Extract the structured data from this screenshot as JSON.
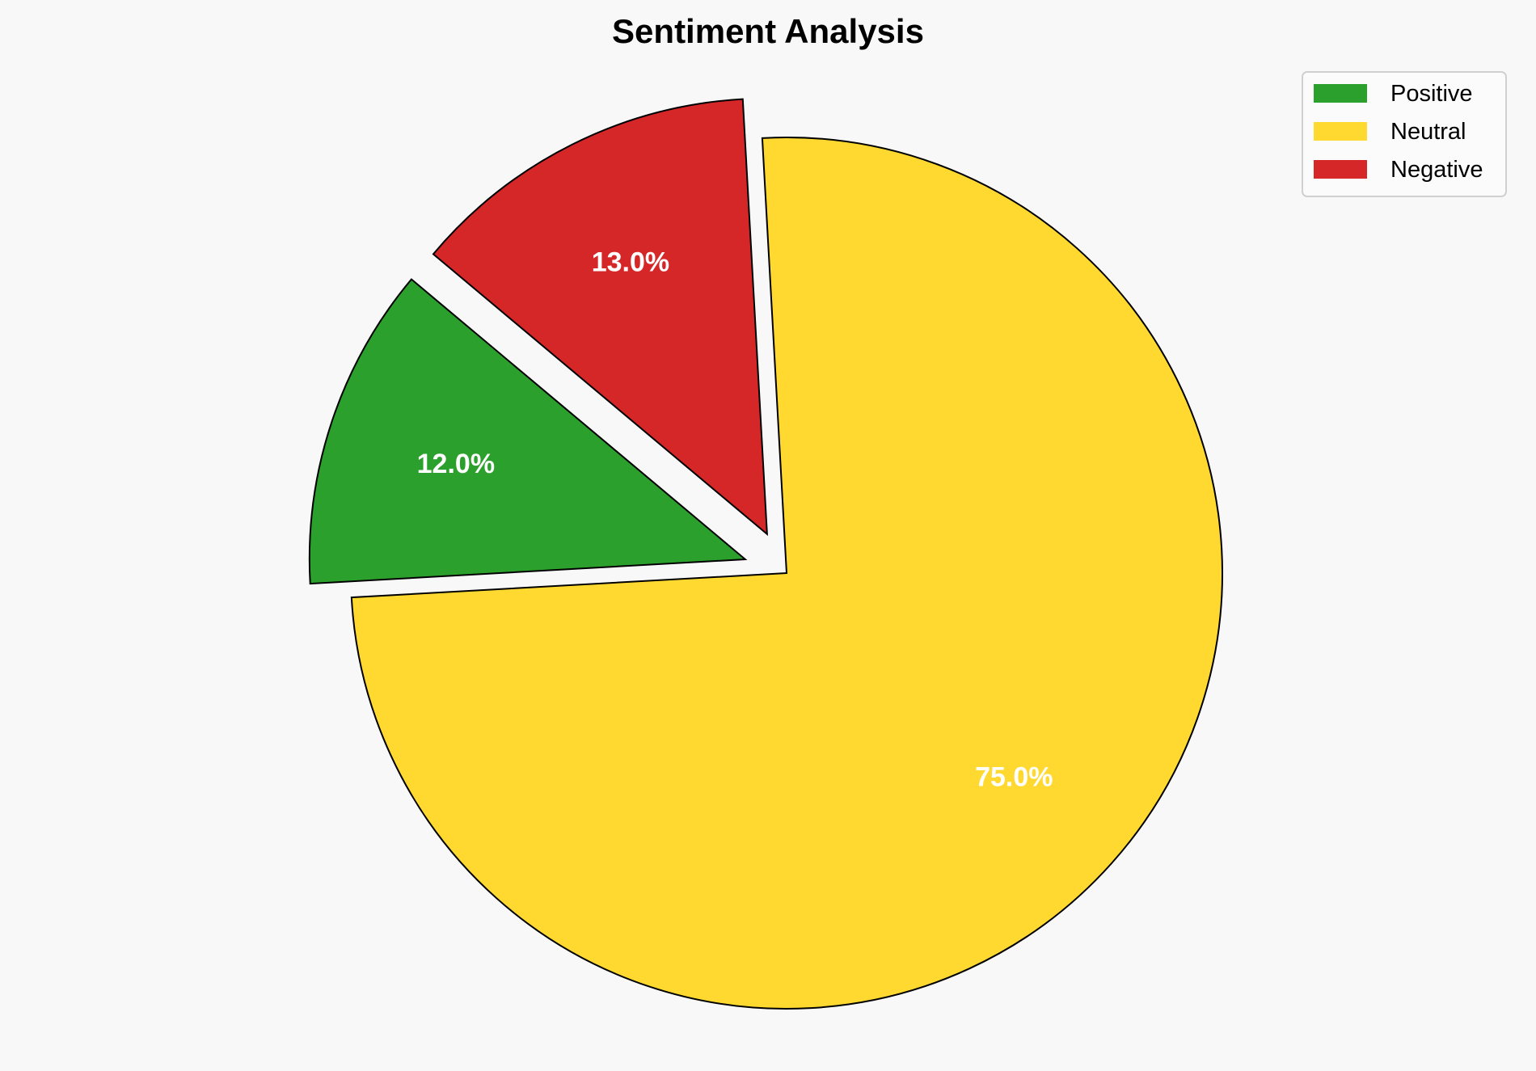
{
  "chart_data": {
    "type": "pie",
    "title": "Sentiment Analysis",
    "categories": [
      "Positive",
      "Neutral",
      "Negative"
    ],
    "values": [
      12.0,
      75.0,
      13.0
    ],
    "labels": [
      "12.0%",
      "75.0%",
      "13.0%"
    ],
    "colors": [
      "#2ca02c",
      "#ffd92f",
      "#d62728"
    ],
    "explode": [
      0.1,
      0,
      0.1
    ],
    "start_angle": 140,
    "edge_color": "#000000",
    "label_color": "#ffffff",
    "background": "#f8f8f8",
    "legend": {
      "position": "top-right",
      "entries": [
        "Positive",
        "Neutral",
        "Negative"
      ]
    }
  }
}
